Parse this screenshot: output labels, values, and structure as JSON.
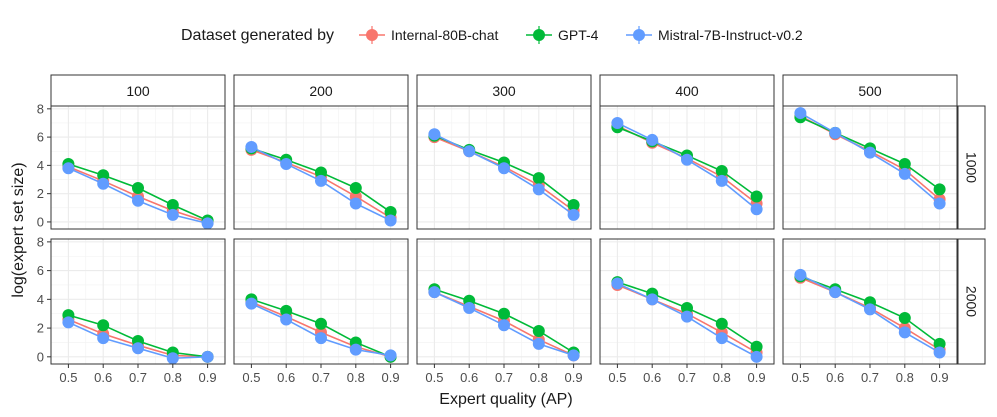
{
  "chart_data": {
    "type": "line",
    "facet_columns": [
      "100",
      "200",
      "300",
      "400",
      "500"
    ],
    "facet_rows": [
      "1000",
      "2000"
    ],
    "x": [
      0.5,
      0.6,
      0.7,
      0.8,
      0.9
    ],
    "x_ticks": [
      "0.5",
      "0.6",
      "0.7",
      "0.8",
      "0.9"
    ],
    "xlim": [
      0.45,
      0.95
    ],
    "y_ticks": [
      "0",
      "2",
      "4",
      "6",
      "8"
    ],
    "ylim": [
      -0.5,
      8.2
    ],
    "xlabel": "Expert quality (AP)",
    "ylabel": "log(expert set size)",
    "legend": {
      "title": "Dataset generated by",
      "position": "top",
      "entries": [
        "Internal-80B-chat",
        "GPT-4",
        "Mistral-7B-Instruct-v0.2"
      ]
    },
    "colors": {
      "Internal-80B-chat": "#f8766d",
      "GPT-4": "#00ba38",
      "Mistral-7B-Instruct-v0.2": "#619cff"
    },
    "series": [
      {
        "name": "Internal-80B-chat",
        "values": {
          "1000": {
            "100": [
              3.9,
              2.9,
              1.8,
              0.8,
              0.0
            ],
            "200": [
              5.1,
              4.2,
              3.2,
              1.8,
              0.3
            ],
            "300": [
              6.0,
              5.0,
              3.9,
              2.6,
              0.8
            ],
            "400": [
              6.8,
              5.6,
              4.5,
              3.2,
              1.3
            ],
            "500": [
              7.5,
              6.2,
              5.0,
              3.7,
              1.6
            ]
          },
          "2000": {
            "100": [
              2.6,
              1.6,
              0.8,
              0.1,
              0.0
            ],
            "200": [
              3.8,
              2.8,
              1.7,
              0.7,
              0.0
            ],
            "300": [
              4.5,
              3.5,
              2.5,
              1.2,
              0.1
            ],
            "400": [
              5.0,
              4.0,
              3.0,
              1.7,
              0.3
            ],
            "500": [
              5.5,
              4.5,
              3.4,
              2.0,
              0.5
            ]
          }
        }
      },
      {
        "name": "GPT-4",
        "values": {
          "1000": {
            "100": [
              4.1,
              3.3,
              2.4,
              1.2,
              0.1
            ],
            "200": [
              5.2,
              4.4,
              3.5,
              2.4,
              0.7
            ],
            "300": [
              6.1,
              5.1,
              4.2,
              3.1,
              1.2
            ],
            "400": [
              6.7,
              5.7,
              4.7,
              3.6,
              1.8
            ],
            "500": [
              7.4,
              6.3,
              5.2,
              4.1,
              2.3
            ]
          },
          "2000": {
            "100": [
              2.9,
              2.2,
              1.1,
              0.3,
              0.0
            ],
            "200": [
              4.0,
              3.2,
              2.3,
              1.0,
              0.0
            ],
            "300": [
              4.7,
              3.9,
              3.0,
              1.8,
              0.3
            ],
            "400": [
              5.2,
              4.4,
              3.4,
              2.3,
              0.7
            ],
            "500": [
              5.6,
              4.7,
              3.8,
              2.7,
              0.9
            ]
          }
        }
      },
      {
        "name": "Mistral-7B-Instruct-v0.2",
        "values": {
          "1000": {
            "100": [
              3.8,
              2.7,
              1.5,
              0.5,
              -0.1
            ],
            "200": [
              5.3,
              4.1,
              2.9,
              1.3,
              0.1
            ],
            "300": [
              6.2,
              5.0,
              3.8,
              2.3,
              0.5
            ],
            "400": [
              7.0,
              5.8,
              4.4,
              2.9,
              0.9
            ],
            "500": [
              7.7,
              6.3,
              4.9,
              3.4,
              1.3
            ]
          },
          "2000": {
            "100": [
              2.4,
              1.3,
              0.6,
              -0.1,
              0.0
            ],
            "200": [
              3.7,
              2.6,
              1.3,
              0.5,
              0.1
            ],
            "300": [
              4.5,
              3.4,
              2.2,
              0.9,
              0.1
            ],
            "400": [
              5.1,
              4.0,
              2.8,
              1.3,
              0.0
            ],
            "500": [
              5.7,
              4.5,
              3.3,
              1.7,
              0.3
            ]
          }
        }
      }
    ]
  }
}
